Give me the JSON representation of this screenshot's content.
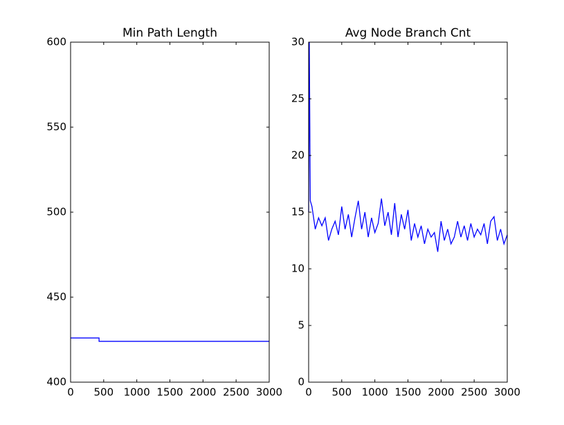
{
  "chart_data": [
    {
      "type": "line",
      "title": "Min Path Length",
      "x": [
        0,
        430,
        430,
        3000
      ],
      "series": [
        {
          "color": "#0000ff",
          "values": [
            426,
            426,
            424,
            424
          ]
        }
      ],
      "xlim": [
        0,
        3000
      ],
      "xticks": [
        0,
        500,
        1000,
        1500,
        2000,
        2500,
        3000
      ],
      "ylim": [
        400,
        600
      ],
      "yticks": [
        400,
        450,
        500,
        550,
        600
      ]
    },
    {
      "type": "line",
      "title": "Avg Node Branch Cnt",
      "x": [
        0,
        10,
        25,
        50,
        100,
        150,
        200,
        250,
        300,
        350,
        400,
        450,
        500,
        550,
        600,
        650,
        700,
        750,
        800,
        850,
        900,
        950,
        1000,
        1050,
        1100,
        1150,
        1200,
        1250,
        1300,
        1350,
        1400,
        1450,
        1500,
        1550,
        1600,
        1650,
        1700,
        1750,
        1800,
        1850,
        1900,
        1950,
        2000,
        2050,
        2100,
        2150,
        2200,
        2250,
        2300,
        2350,
        2400,
        2450,
        2500,
        2550,
        2600,
        2650,
        2700,
        2750,
        2800,
        2850,
        2900,
        2950,
        3000
      ],
      "series": [
        {
          "color": "#0000ff",
          "values": [
            15,
            30,
            16,
            15.5,
            13.5,
            14.5,
            13.8,
            14.5,
            12.5,
            13.5,
            14.2,
            13,
            15.5,
            13.5,
            14.8,
            12.8,
            14.5,
            16,
            13.5,
            15,
            12.8,
            14.5,
            13.2,
            14,
            16.2,
            13.8,
            15,
            13,
            15.8,
            12.8,
            14.8,
            13.5,
            15.2,
            12.5,
            14,
            12.8,
            13.8,
            12.2,
            13.5,
            12.8,
            13.2,
            11.5,
            14.2,
            12.5,
            13.5,
            12.2,
            12.8,
            14.2,
            12.8,
            13.8,
            12.5,
            14,
            12.8,
            13.5,
            13,
            14,
            12.2,
            14.2,
            14.6,
            12.5,
            13.5,
            12.2,
            13
          ]
        }
      ],
      "xlim": [
        0,
        3000
      ],
      "xticks": [
        0,
        500,
        1000,
        1500,
        2000,
        2500,
        3000
      ],
      "ylim": [
        0,
        30
      ],
      "yticks": [
        0,
        5,
        10,
        15,
        20,
        25,
        30
      ]
    }
  ]
}
